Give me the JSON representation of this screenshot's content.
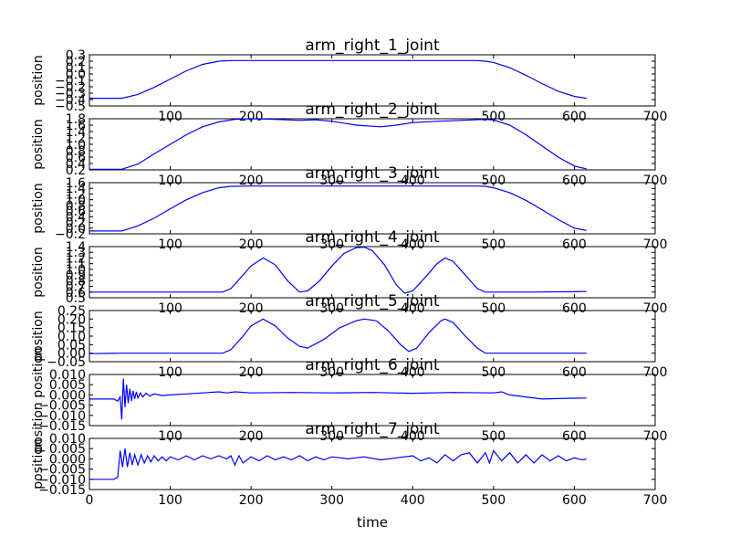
{
  "chart_data": [
    {
      "type": "line",
      "title": "arm_right_1_joint",
      "xlabel": "",
      "ylabel": "position",
      "xlim": [
        0,
        700
      ],
      "ylim": [
        -0.5,
        0.3
      ],
      "xticks": [
        0,
        100,
        200,
        300,
        400,
        500,
        600,
        700
      ],
      "yticks": [
        -0.5,
        -0.4,
        -0.3,
        -0.2,
        -0.1,
        0.0,
        0.1,
        0.2,
        0.3
      ],
      "ytick_labels": [
        "−0.5",
        "−0.4",
        "−0.3",
        "−0.2",
        "−0.1",
        "0.0",
        "0.1",
        "0.2",
        "0.3"
      ],
      "show_xtick_labels": [
        false,
        true,
        true,
        false,
        false,
        true,
        true,
        true
      ],
      "color": "#0000ff",
      "grid": false,
      "series": [
        {
          "x": [
            0,
            40,
            60,
            80,
            100,
            120,
            140,
            160,
            175,
            200,
            300,
            400,
            480,
            490,
            500,
            520,
            540,
            560,
            580,
            600,
            615
          ],
          "y": [
            -0.38,
            -0.38,
            -0.32,
            -0.21,
            -0.08,
            0.05,
            0.15,
            0.2,
            0.21,
            0.21,
            0.21,
            0.21,
            0.21,
            0.2,
            0.18,
            0.1,
            -0.02,
            -0.15,
            -0.27,
            -0.35,
            -0.38
          ]
        }
      ]
    },
    {
      "type": "line",
      "title": "arm_right_2_joint",
      "xlabel": "",
      "ylabel": "position",
      "xlim": [
        0,
        700
      ],
      "ylim": [
        0.2,
        1.8
      ],
      "xticks": [
        0,
        100,
        200,
        300,
        400,
        500,
        600,
        700
      ],
      "yticks": [
        0.2,
        0.4,
        0.6,
        0.8,
        1.0,
        1.2,
        1.4,
        1.6,
        1.8
      ],
      "ytick_labels": [
        "0.2",
        "0.4",
        "0.6",
        "0.8",
        "1.0",
        "1.2",
        "1.4",
        "1.6",
        "1.8"
      ],
      "show_xtick_labels": [
        false,
        true,
        true,
        true,
        true,
        true,
        true,
        true
      ],
      "color": "#0000ff",
      "grid": false,
      "series": [
        {
          "x": [
            0,
            40,
            60,
            80,
            100,
            120,
            140,
            160,
            180,
            200,
            230,
            260,
            280,
            300,
            330,
            360,
            380,
            400,
            430,
            460,
            490,
            500,
            520,
            540,
            560,
            580,
            600,
            615
          ],
          "y": [
            0.22,
            0.22,
            0.38,
            0.7,
            1.0,
            1.3,
            1.55,
            1.7,
            1.78,
            1.8,
            1.78,
            1.75,
            1.77,
            1.72,
            1.6,
            1.55,
            1.6,
            1.68,
            1.72,
            1.75,
            1.78,
            1.76,
            1.6,
            1.3,
            0.95,
            0.6,
            0.32,
            0.23
          ]
        }
      ]
    },
    {
      "type": "line",
      "title": "arm_right_3_joint",
      "xlabel": "",
      "ylabel": "position",
      "xlim": [
        0,
        700
      ],
      "ylim": [
        -0.2,
        1.6
      ],
      "xticks": [
        0,
        100,
        200,
        300,
        400,
        500,
        600,
        700
      ],
      "yticks": [
        -0.2,
        0.0,
        0.2,
        0.4,
        0.6,
        0.8,
        1.0,
        1.2,
        1.4,
        1.6
      ],
      "ytick_labels": [
        "−0.2",
        "0.0",
        "0.2",
        "0.4",
        "0.6",
        "0.8",
        "1.0",
        "1.2",
        "1.4",
        "1.6"
      ],
      "show_xtick_labels": [
        false,
        true,
        true,
        true,
        true,
        true,
        true,
        true
      ],
      "color": "#0000ff",
      "grid": false,
      "series": [
        {
          "x": [
            0,
            40,
            60,
            80,
            100,
            120,
            140,
            160,
            175,
            200,
            300,
            400,
            480,
            490,
            500,
            520,
            540,
            560,
            580,
            600,
            615
          ],
          "y": [
            -0.1,
            -0.1,
            0.08,
            0.35,
            0.68,
            1.0,
            1.25,
            1.42,
            1.47,
            1.48,
            1.48,
            1.48,
            1.48,
            1.47,
            1.42,
            1.25,
            0.98,
            0.65,
            0.3,
            0.0,
            -0.08
          ]
        }
      ]
    },
    {
      "type": "line",
      "title": "arm_right_4_joint",
      "xlabel": "",
      "ylabel": "position",
      "xlim": [
        0,
        700
      ],
      "ylim": [
        0.5,
        1.4
      ],
      "xticks": [
        0,
        100,
        200,
        300,
        400,
        500,
        600,
        700
      ],
      "yticks": [
        0.5,
        0.6,
        0.7,
        0.8,
        0.9,
        1.0,
        1.1,
        1.2,
        1.3,
        1.4
      ],
      "ytick_labels": [
        "0.5",
        "0.6",
        "0.7",
        "0.8",
        "0.9",
        "1.0",
        "1.1",
        "1.2",
        "1.3",
        "1.4"
      ],
      "show_xtick_labels": [
        false,
        true,
        true,
        true,
        true,
        true,
        true,
        true
      ],
      "color": "#0000ff",
      "grid": false,
      "series": [
        {
          "x": [
            0,
            100,
            165,
            175,
            190,
            200,
            215,
            230,
            245,
            260,
            270,
            285,
            300,
            315,
            330,
            340,
            350,
            365,
            380,
            390,
            400,
            415,
            430,
            440,
            450,
            465,
            480,
            490,
            500,
            550,
            615
          ],
          "y": [
            0.6,
            0.6,
            0.6,
            0.66,
            0.9,
            1.06,
            1.2,
            1.08,
            0.8,
            0.6,
            0.62,
            0.8,
            1.06,
            1.28,
            1.38,
            1.39,
            1.33,
            1.08,
            0.72,
            0.58,
            0.62,
            0.85,
            1.1,
            1.2,
            1.14,
            0.9,
            0.66,
            0.6,
            0.6,
            0.6,
            0.61
          ]
        }
      ]
    },
    {
      "type": "line",
      "title": "arm_right_5_joint",
      "xlabel": "",
      "ylabel": "position",
      "xlim": [
        0,
        700
      ],
      "ylim": [
        -0.05,
        0.25
      ],
      "xticks": [
        0,
        100,
        200,
        300,
        400,
        500,
        600,
        700
      ],
      "yticks": [
        -0.05,
        0.0,
        0.05,
        0.1,
        0.15,
        0.2,
        0.25
      ],
      "ytick_labels": [
        "−0.05",
        "0.00",
        "0.05",
        "0.10",
        "0.15",
        "0.20",
        "0.25"
      ],
      "show_xtick_labels": [
        false,
        true,
        true,
        true,
        true,
        true,
        true,
        true
      ],
      "color": "#0000ff",
      "grid": false,
      "series": [
        {
          "x": [
            0,
            40,
            100,
            165,
            175,
            190,
            200,
            215,
            230,
            245,
            260,
            270,
            290,
            310,
            330,
            340,
            355,
            370,
            385,
            395,
            405,
            420,
            435,
            440,
            450,
            465,
            480,
            490,
            500,
            550,
            615
          ],
          "y": [
            -0.003,
            0.0,
            0.0,
            0.0,
            0.02,
            0.1,
            0.16,
            0.2,
            0.16,
            0.09,
            0.04,
            0.03,
            0.08,
            0.15,
            0.19,
            0.2,
            0.19,
            0.13,
            0.05,
            0.01,
            0.03,
            0.12,
            0.19,
            0.2,
            0.18,
            0.1,
            0.03,
            0.0,
            0.0,
            0.0,
            0.0
          ]
        }
      ]
    },
    {
      "type": "line",
      "title": "arm_right_6_joint",
      "xlabel": "",
      "ylabel": "position position",
      "xlim": [
        0,
        700
      ],
      "ylim": [
        -0.015,
        0.01
      ],
      "xticks": [
        0,
        100,
        200,
        300,
        400,
        500,
        600,
        700
      ],
      "yticks": [
        -0.015,
        -0.01,
        -0.005,
        0.0,
        0.005,
        0.01
      ],
      "ytick_labels": [
        "−0.015",
        "−0.010",
        "−0.005",
        "0.000",
        "0.005",
        "0.010"
      ],
      "show_xtick_labels": [
        false,
        true,
        true,
        true,
        true,
        true,
        true,
        true
      ],
      "color": "#0000ff",
      "grid": false,
      "series": [
        {
          "x": [
            0,
            30,
            35,
            38,
            40,
            42,
            44,
            46,
            48,
            50,
            52,
            54,
            56,
            58,
            60,
            63,
            66,
            70,
            75,
            80,
            90,
            100,
            120,
            140,
            160,
            170,
            180,
            200,
            250,
            300,
            350,
            400,
            450,
            500,
            510,
            520,
            540,
            560,
            580,
            600,
            615
          ],
          "y": [
            -0.002,
            -0.002,
            -0.003,
            -0.001,
            -0.012,
            0.008,
            -0.006,
            0.005,
            -0.004,
            0.003,
            -0.003,
            0.002,
            -0.002,
            0.0015,
            -0.0015,
            0.001,
            -0.001,
            0.0008,
            -0.0006,
            0.0005,
            -0.0003,
            0.0,
            0.0005,
            0.001,
            0.0015,
            0.001,
            0.0015,
            0.001,
            0.0012,
            0.001,
            0.0012,
            0.0008,
            0.0012,
            0.001,
            0.0015,
            0.0,
            -0.001,
            -0.002,
            -0.0018,
            -0.0016,
            -0.0015
          ]
        }
      ]
    },
    {
      "type": "line",
      "title": "arm_right_7_joint",
      "xlabel": "time",
      "ylabel": "position",
      "xlim": [
        0,
        700
      ],
      "ylim": [
        -0.015,
        0.01
      ],
      "xticks": [
        0,
        100,
        200,
        300,
        400,
        500,
        600,
        700
      ],
      "yticks": [
        -0.015,
        -0.01,
        -0.005,
        0.0,
        0.005,
        0.01
      ],
      "ytick_labels": [
        "−0.015",
        "−0.010",
        "−0.005",
        "0.000",
        "0.005",
        "0.010"
      ],
      "show_xtick_labels": [
        true,
        true,
        true,
        true,
        true,
        true,
        true,
        true
      ],
      "color": "#0000ff",
      "grid": false,
      "series": [
        {
          "x": [
            0,
            30,
            35,
            38,
            41,
            44,
            47,
            50,
            53,
            56,
            60,
            64,
            68,
            72,
            76,
            80,
            85,
            90,
            95,
            100,
            110,
            120,
            130,
            140,
            150,
            160,
            170,
            175,
            180,
            185,
            190,
            200,
            210,
            220,
            230,
            240,
            250,
            260,
            270,
            280,
            290,
            300,
            320,
            340,
            360,
            380,
            400,
            410,
            420,
            430,
            440,
            450,
            460,
            470,
            480,
            490,
            495,
            500,
            510,
            520,
            530,
            540,
            550,
            560,
            570,
            580,
            590,
            600,
            610,
            615
          ],
          "y": [
            -0.01,
            -0.01,
            -0.009,
            0.004,
            -0.004,
            0.005,
            -0.004,
            0.003,
            -0.003,
            0.002,
            -0.003,
            0.002,
            -0.002,
            0.0015,
            -0.0015,
            0.0015,
            -0.001,
            0.001,
            -0.001,
            0.001,
            -0.0005,
            0.0015,
            -0.0005,
            0.0015,
            0.0,
            0.0015,
            0.0,
            0.0015,
            -0.003,
            0.0015,
            -0.002,
            0.001,
            -0.001,
            0.0015,
            -0.0005,
            0.001,
            -0.0005,
            0.0015,
            -0.001,
            0.001,
            -0.0005,
            0.001,
            0.0,
            0.001,
            -0.0005,
            0.0005,
            0.0015,
            -0.001,
            0.0005,
            -0.002,
            0.002,
            -0.001,
            0.002,
            0.003,
            -0.002,
            0.003,
            -0.002,
            0.004,
            -0.001,
            0.003,
            -0.002,
            0.002,
            -0.002,
            0.002,
            -0.001,
            0.0015,
            -0.001,
            0.0005,
            -0.0005,
            0.0
          ]
        }
      ]
    }
  ]
}
